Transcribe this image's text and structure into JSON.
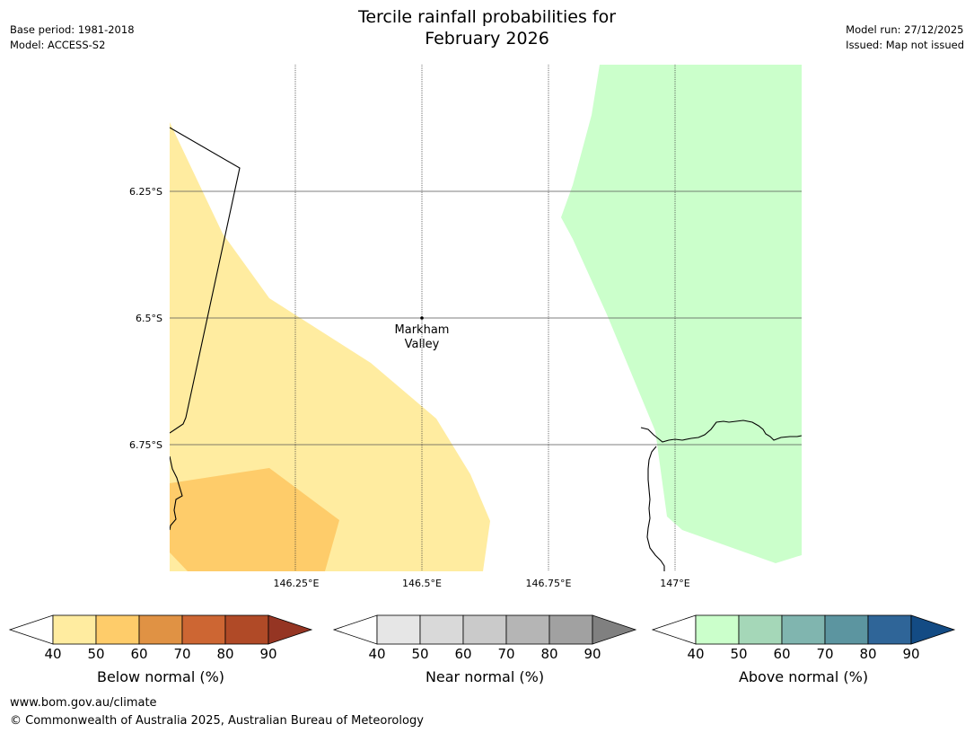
{
  "header": {
    "title_line1": "Tercile rainfall probabilities for",
    "title_line2": "February 2026",
    "base_period": "Base period: 1981-2018",
    "model": "Model: ACCESS-S2",
    "model_run": "Model run: 27/12/2025",
    "issued": "Issued: Map not issued"
  },
  "map": {
    "lat_labels": [
      "6.25°S",
      "6.5°S",
      "6.75°S"
    ],
    "lon_labels": [
      "146.25°E",
      "146.5°E",
      "146.75°E",
      "147°E"
    ],
    "place_name_line1": "Markham",
    "place_name_line2": "Valley",
    "colors": {
      "below_40": "#ffeca0",
      "below_50": "#fecc6a",
      "above_40": "#cbffcb",
      "grid": "#555555"
    }
  },
  "legends": [
    {
      "label": "Below normal (%)",
      "ticks": [
        "40",
        "50",
        "60",
        "70",
        "80",
        "90"
      ],
      "colors": [
        "#ffeca0",
        "#fecc6a",
        "#e09244",
        "#cd6633",
        "#b04a27",
        "#953523"
      ]
    },
    {
      "label": "Near normal (%)",
      "ticks": [
        "40",
        "50",
        "60",
        "70",
        "80",
        "90"
      ],
      "colors": [
        "#e6e6e6",
        "#d9d9d9",
        "#cacaca",
        "#b5b5b5",
        "#a1a1a1",
        "#808080"
      ]
    },
    {
      "label": "Above normal (%)",
      "ticks": [
        "40",
        "50",
        "60",
        "70",
        "80",
        "90"
      ],
      "colors": [
        "#cbffcb",
        "#a5d7b8",
        "#80b5af",
        "#5c95a0",
        "#2f6598",
        "#134b84"
      ]
    }
  ],
  "footer": {
    "url": "www.bom.gov.au/climate",
    "copyright": "© Commonwealth of Australia 2025, Australian Bureau of Meteorology"
  }
}
